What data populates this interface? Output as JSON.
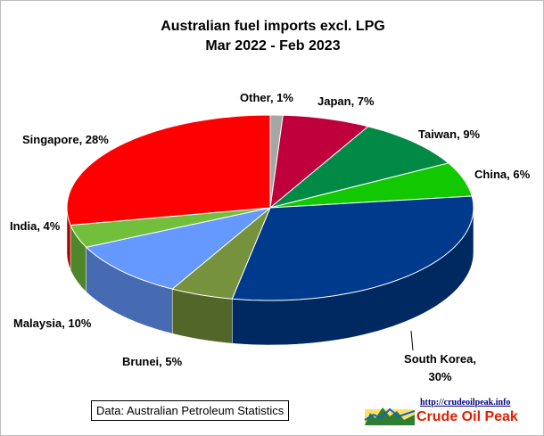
{
  "chart_data": {
    "type": "pie3d",
    "title": "Australian fuel imports excl. LPG",
    "subtitle": "Mar 2022 - Feb 2023",
    "values": [
      1,
      7,
      9,
      6,
      30,
      5,
      10,
      4,
      28
    ],
    "value_labels": [
      "Other, 1%",
      "Japan, 7%",
      "Taiwan, 9%",
      "China, 6%",
      "South Korea, 30%",
      "Brunei, 5%",
      "Malaysia, 10%",
      "India, 4%",
      "Singapore, 28%"
    ],
    "colors": [
      "#a6a6a6",
      "#c0003c",
      "#008a46",
      "#12c800",
      "#003a8c",
      "#76923c",
      "#6699ff",
      "#72bf3c",
      "#ff0000"
    ],
    "source": "Data: Australian Petroleum  Statistics",
    "logo_url": "http://crudeoilpeak.info",
    "logo_name": "Crude Oil Peak"
  }
}
